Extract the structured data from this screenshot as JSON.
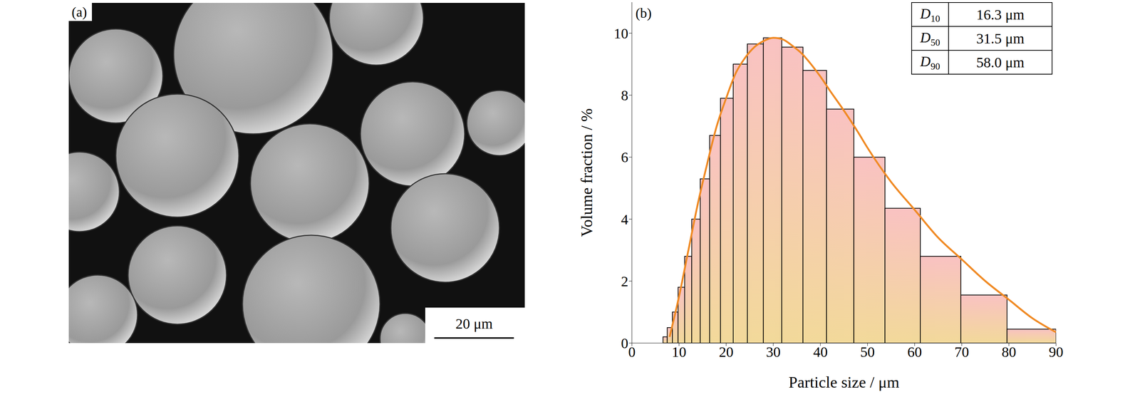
{
  "image_panel": {
    "label": "(a)",
    "scale_bar": "20 μm"
  },
  "chart_data": {
    "type": "histogram",
    "panel_label": "(b)",
    "x_label": "Particle size / μm",
    "y_label": "Volume fraction / %",
    "bins": [
      6.6,
      7.5,
      8.6,
      9.8,
      11.2,
      12.7,
      14.5,
      16.5,
      18.8,
      21.5,
      24.5,
      27.9,
      31.8,
      36.3,
      41.3,
      47.1,
      53.7,
      61.2,
      69.8,
      79.6,
      90
    ],
    "values": [
      0.2,
      0.5,
      1.0,
      1.8,
      2.8,
      4.0,
      5.3,
      6.7,
      7.9,
      9.0,
      9.65,
      9.85,
      9.55,
      8.8,
      7.55,
      6.0,
      4.35,
      2.8,
      1.55,
      0.45
    ],
    "color": "#f9c2c2",
    "series": [
      {
        "type": "line",
        "color": "#f08a24",
        "x": [
          8,
          10,
          12,
          14,
          16,
          18,
          20,
          22,
          24,
          26,
          28,
          30,
          32,
          34,
          36,
          38,
          40,
          42,
          45,
          48,
          50,
          55,
          60,
          65,
          70,
          75,
          80,
          85,
          90
        ],
        "values": [
          0.2,
          1.5,
          3.0,
          4.5,
          5.8,
          7.0,
          7.9,
          8.7,
          9.2,
          9.55,
          9.75,
          9.85,
          9.8,
          9.6,
          9.35,
          9.0,
          8.6,
          8.15,
          7.5,
          6.8,
          6.3,
          5.2,
          4.3,
          3.4,
          2.7,
          2.0,
          1.4,
          0.8,
          0.35
        ]
      }
    ],
    "xlim": [
      0,
      90
    ],
    "xticks": [
      0,
      10,
      20,
      30,
      40,
      50,
      60,
      70,
      80,
      90
    ],
    "ylim": [
      0,
      11
    ],
    "yticks": [
      0,
      2,
      4,
      6,
      8,
      10
    ],
    "table": [
      {
        "symbol": "D",
        "subscript": "10",
        "value": "16.3 μm"
      },
      {
        "symbol": "D",
        "subscript": "50",
        "value": "31.5 μm"
      },
      {
        "symbol": "D",
        "subscript": "90",
        "value": "58.0 μm"
      }
    ]
  }
}
